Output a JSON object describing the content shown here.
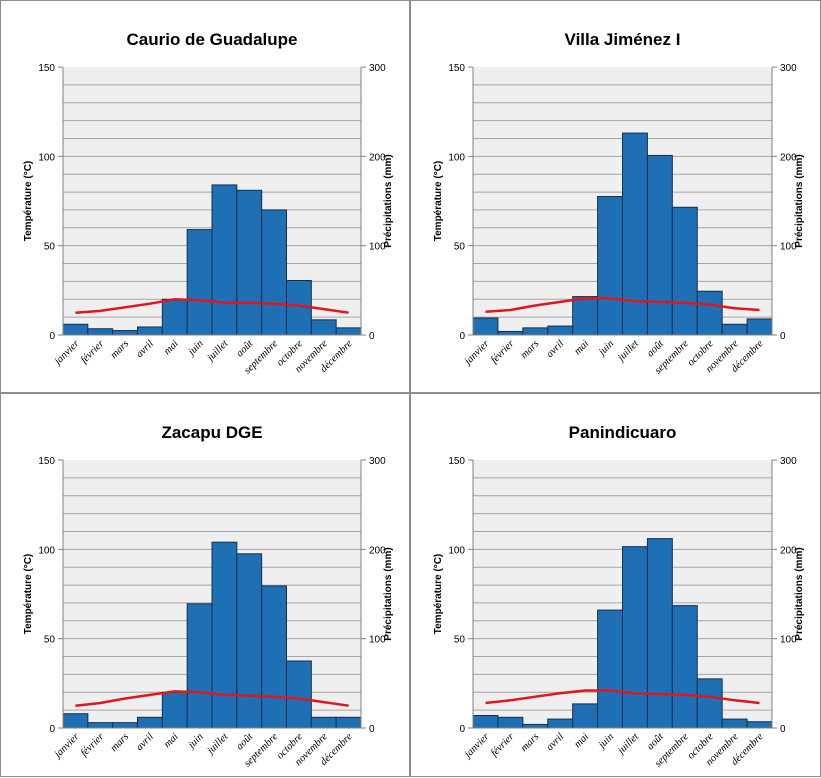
{
  "chart_data": [
    {
      "type": "bar",
      "title": "Caurio de Guadalupe",
      "ylabel": "Température (°C)",
      "y2label": "Précipitations (mm)",
      "ylim": [
        0,
        150
      ],
      "y2lim": [
        0,
        300
      ],
      "yticks": [
        "0",
        "50",
        "100",
        "150"
      ],
      "y2ticks": [
        "0",
        "100",
        "200",
        "300"
      ],
      "categories": [
        "janvier",
        "février",
        "mars",
        "avril",
        "mai",
        "juin",
        "juillet",
        "août",
        "septembre",
        "octobre",
        "novembre",
        "décembre"
      ],
      "grid": true,
      "series": [
        {
          "type": "bar",
          "axis": "right",
          "color": "#1f6fb4",
          "values": [
            12,
            7,
            5,
            9,
            40,
            118,
            168,
            162,
            140,
            61,
            17,
            8
          ]
        },
        {
          "type": "line",
          "axis": "left",
          "color": "#e0161e",
          "values": [
            12.5,
            13.5,
            15.5,
            17.5,
            20,
            19.5,
            18,
            18,
            17.5,
            16.5,
            14.5,
            12.5
          ]
        }
      ]
    },
    {
      "type": "bar",
      "title": "Villa Jiménez I",
      "ylabel": "Température (°C)",
      "y2label": "Précipitations (mm)",
      "ylim": [
        0,
        150
      ],
      "y2lim": [
        0,
        300
      ],
      "yticks": [
        "0",
        "50",
        "100",
        "150"
      ],
      "y2ticks": [
        "0",
        "100",
        "200",
        "300"
      ],
      "categories": [
        "janvier",
        "février",
        "mars",
        "avril",
        "mai",
        "juin",
        "juillet",
        "août",
        "septembre",
        "octobre",
        "novembre",
        "décembre"
      ],
      "grid": true,
      "series": [
        {
          "type": "bar",
          "axis": "right",
          "color": "#1f6fb4",
          "values": [
            19,
            4,
            8,
            10,
            43,
            155,
            226,
            201,
            143,
            49,
            12,
            18
          ]
        },
        {
          "type": "line",
          "axis": "left",
          "color": "#e0161e",
          "values": [
            13,
            14,
            16.5,
            18.5,
            20.5,
            20.5,
            19,
            18.5,
            18,
            17,
            15,
            14
          ]
        }
      ]
    },
    {
      "type": "bar",
      "title": "Zacapu DGE",
      "ylabel": "Température (°C)",
      "y2label": "Précipitations (mm)",
      "ylim": [
        0,
        150
      ],
      "y2lim": [
        0,
        300
      ],
      "yticks": [
        "0",
        "50",
        "100",
        "150"
      ],
      "y2ticks": [
        "0",
        "100",
        "200",
        "300"
      ],
      "categories": [
        "janvier",
        "février",
        "mars",
        "avril",
        "mai",
        "juin",
        "juillet",
        "août",
        "septembre",
        "octobre",
        "novembre",
        "décembre"
      ],
      "grid": true,
      "series": [
        {
          "type": "bar",
          "axis": "right",
          "color": "#1f6fb4",
          "values": [
            16,
            6,
            6,
            12,
            40,
            139,
            208,
            195,
            159,
            75,
            12,
            12
          ]
        },
        {
          "type": "line",
          "axis": "left",
          "color": "#e0161e",
          "values": [
            12.5,
            14,
            16.5,
            18.5,
            20.5,
            20,
            18.5,
            18,
            17.5,
            16.5,
            14.5,
            12.5
          ]
        }
      ]
    },
    {
      "type": "bar",
      "title": "Panindicuaro",
      "ylabel": "Température (°C)",
      "y2label": "Précipitations (mm)",
      "ylim": [
        0,
        150
      ],
      "y2lim": [
        0,
        300
      ],
      "yticks": [
        "0",
        "50",
        "100",
        "150"
      ],
      "y2ticks": [
        "0",
        "100",
        "200",
        "300"
      ],
      "categories": [
        "janvier",
        "février",
        "mars",
        "avril",
        "mai",
        "juin",
        "juillet",
        "août",
        "septembre",
        "octobre",
        "novembre",
        "décembre"
      ],
      "grid": true,
      "series": [
        {
          "type": "bar",
          "axis": "right",
          "color": "#1f6fb4",
          "values": [
            14,
            12,
            4,
            10,
            27,
            132,
            203,
            212,
            137,
            55,
            10,
            7
          ]
        },
        {
          "type": "line",
          "axis": "left",
          "color": "#e0161e",
          "values": [
            14,
            15.5,
            17.5,
            19.5,
            21,
            21,
            19.5,
            19,
            18.5,
            17.5,
            15.5,
            14
          ]
        }
      ]
    }
  ]
}
